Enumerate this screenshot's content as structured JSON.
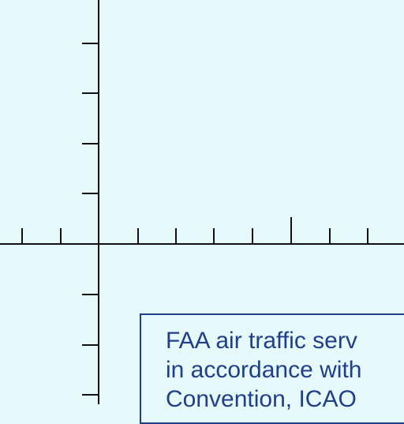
{
  "colors": {
    "background": "#e6fafc",
    "grid_line": "#111111",
    "note_text": "#1f3f8a",
    "note_border": "#1f3f8a"
  },
  "note": {
    "lines": [
      "FAA air traffic serv",
      "in accordance with",
      "Convention, ICAO"
    ]
  }
}
